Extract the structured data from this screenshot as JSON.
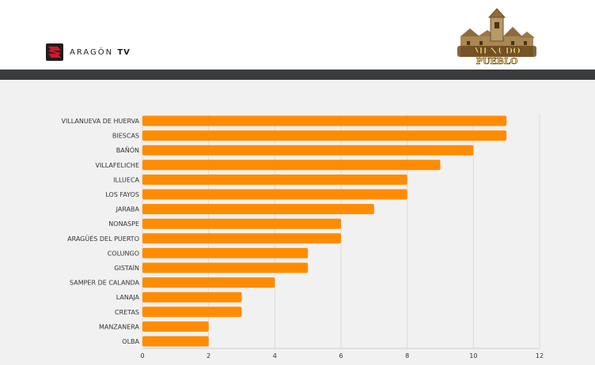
{
  "header": {
    "brand_name": "ARAGÓN",
    "brand_suffix": "TV",
    "show_logo_text": "MENUDO PUEBLO",
    "brand_colors": {
      "red": "#d3172b",
      "dark": "#1f1f1f",
      "bar": "#3a3b3d"
    }
  },
  "chart_data": {
    "type": "bar",
    "orientation": "horizontal",
    "categories": [
      "VILLANUEVA DE HUERVA",
      "BIESCAS",
      "BAÑÓN",
      "VILLAFELICHE",
      "ILLUECA",
      "LOS FAYOS",
      "JARABA",
      "NONASPE",
      "ARAGÜÉS DEL PUERTO",
      "COLUNGO",
      "GISTAÍN",
      "SAMPER DE CALANDA",
      "LANAJA",
      "CRETAS",
      "MANZANERA",
      "OLBA"
    ],
    "values": [
      11,
      11,
      10,
      9,
      8,
      8,
      7,
      6,
      6,
      5,
      5,
      4,
      3,
      3,
      2,
      2
    ],
    "xlim": [
      0,
      12
    ],
    "xticks": [
      "0",
      "2",
      "4",
      "6",
      "8",
      "10",
      "12"
    ],
    "bar_color": "#ff8c00",
    "grid": true,
    "legend": "none"
  }
}
